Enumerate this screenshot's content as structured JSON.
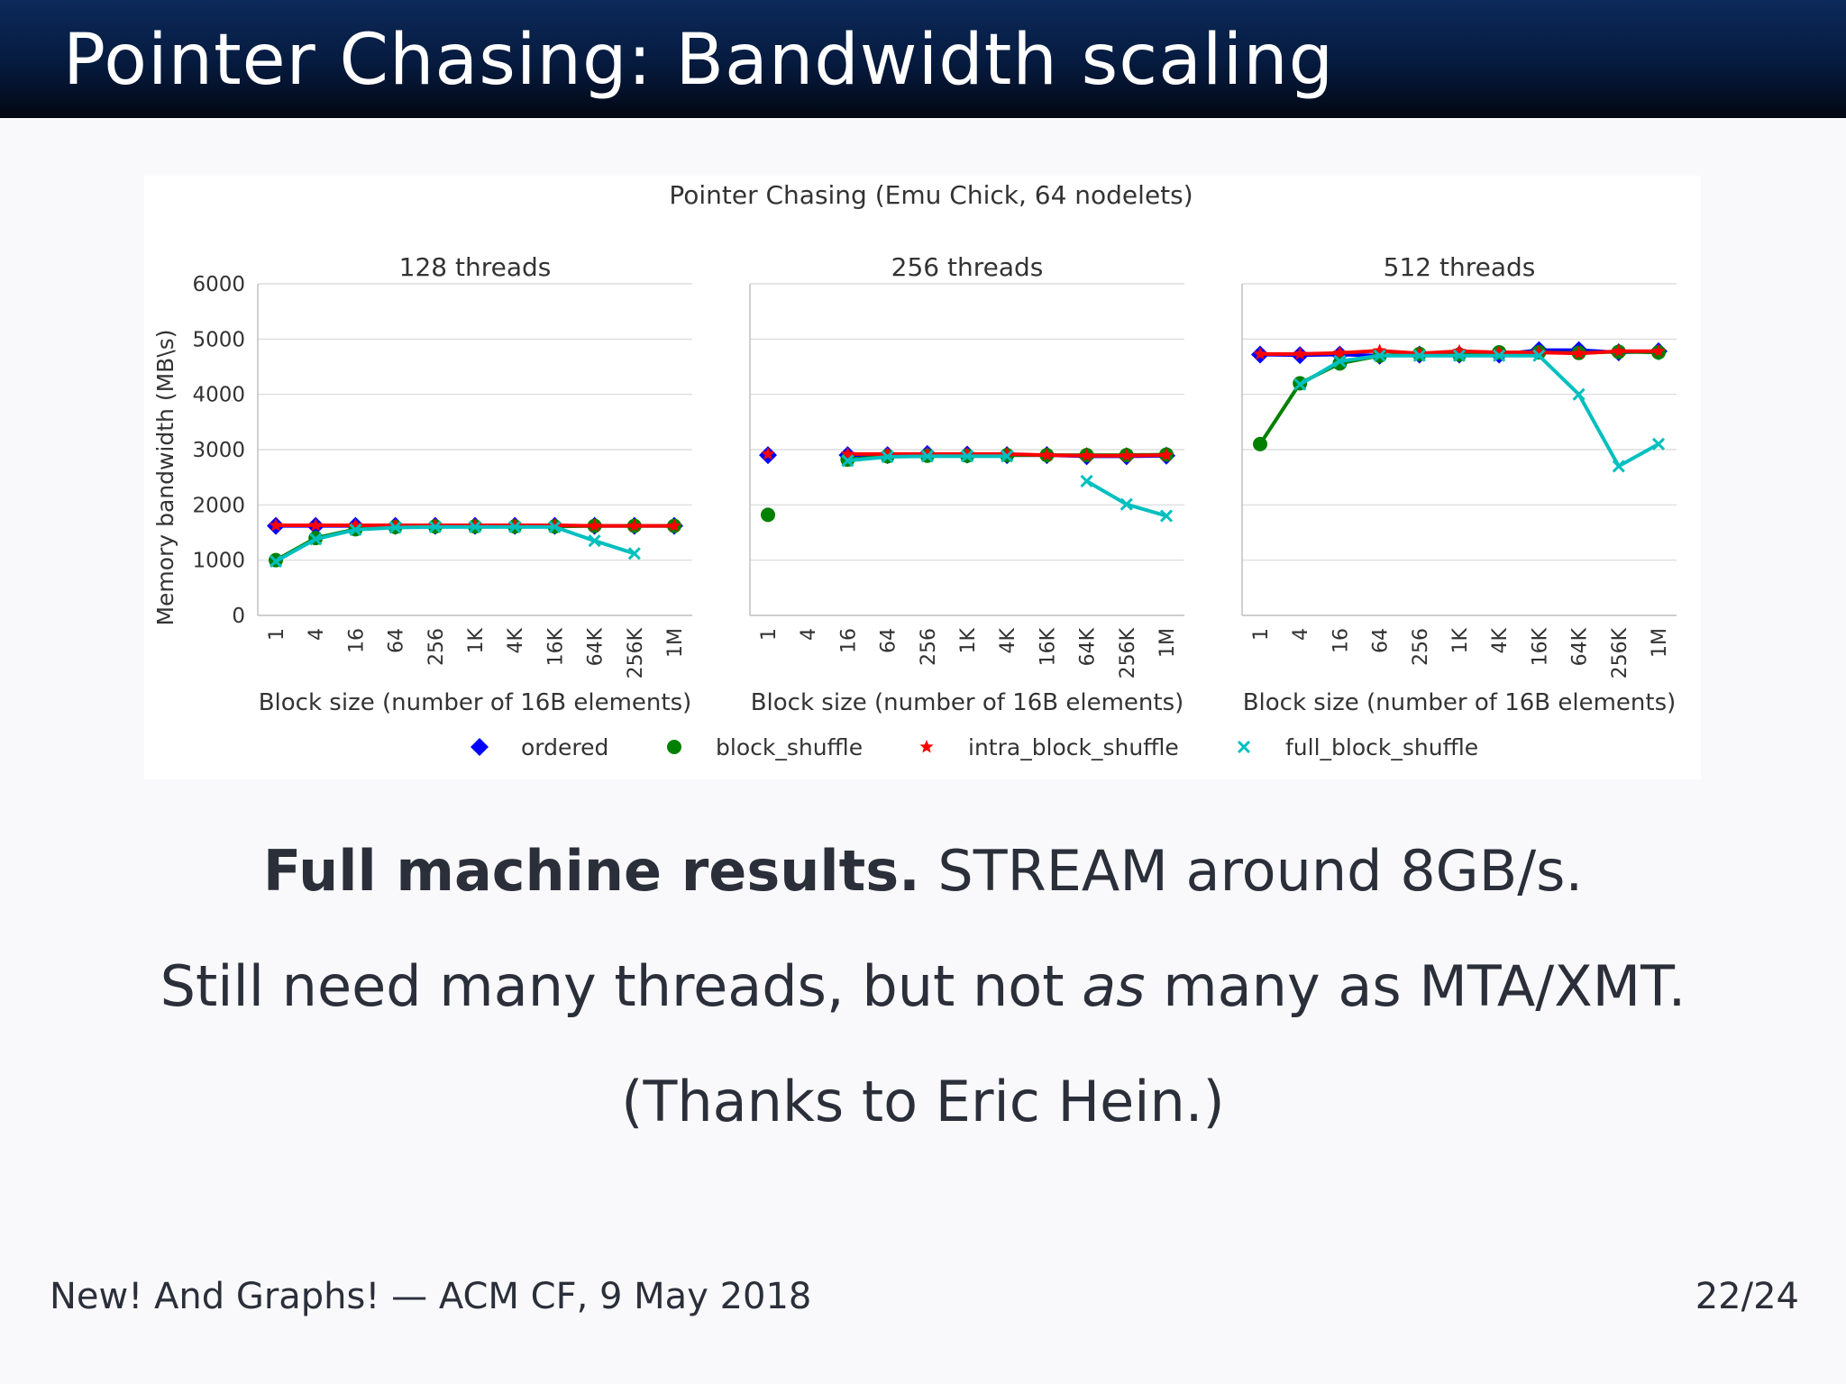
{
  "slide": {
    "title": "Pointer Chasing: Bandwidth scaling",
    "line1_bold": "Full machine results.",
    "line1_rest": " STREAM around 8GB/s.",
    "line2_a": "Still need many threads, but not ",
    "line2_em": "as",
    "line2_b": " many as MTA/XMT.",
    "line3": "(Thanks to Eric Hein.)",
    "footer_left": "New! And Graphs! — ACM CF, 9 May 2018",
    "footer_right": "22/24"
  },
  "chart_data": {
    "type": "line",
    "suptitle": "Pointer Chasing (Emu Chick, 64 nodelets)",
    "ylabel": "Memory bandwidth (MB\\s)",
    "xlabel": "Block size (number of 16B elements)",
    "ylim": [
      0,
      6000
    ],
    "yticks": [
      0,
      1000,
      2000,
      3000,
      4000,
      5000,
      6000
    ],
    "categories": [
      "1",
      "4",
      "16",
      "64",
      "256",
      "1K",
      "4K",
      "16K",
      "64K",
      "256K",
      "1M"
    ],
    "legend": [
      {
        "name": "ordered",
        "color": "#0000ff",
        "marker": "diamond"
      },
      {
        "name": "block_shuffle",
        "color": "#008000",
        "marker": "circle"
      },
      {
        "name": "intra_block_shuffle",
        "color": "#ff0000",
        "marker": "star"
      },
      {
        "name": "full_block_shuffle",
        "color": "#00bfbf",
        "marker": "x"
      }
    ],
    "panels": [
      {
        "title": "128 threads",
        "series": [
          {
            "name": "ordered",
            "values": [
              1620,
              1620,
              1620,
              1620,
              1620,
              1620,
              1620,
              1620,
              1620,
              1620,
              1620
            ]
          },
          {
            "name": "block_shuffle",
            "values": [
              1000,
              1400,
              1560,
              1600,
              1610,
              1610,
              1610,
              1610,
              1620,
              1620,
              1620
            ]
          },
          {
            "name": "intra_block_shuffle",
            "values": [
              1630,
              1630,
              1630,
              1630,
              1630,
              1630,
              1630,
              1630,
              1620,
              1620,
              1620
            ]
          },
          {
            "name": "full_block_shuffle",
            "values": [
              980,
              1380,
              1550,
              1590,
              1600,
              1600,
              1600,
              1600,
              1350,
              1120,
              null
            ]
          }
        ]
      },
      {
        "title": "256 threads",
        "series": [
          {
            "name": "ordered",
            "values": [
              2900,
              null,
              2900,
              2900,
              2920,
              2910,
              2900,
              2900,
              2880,
              2880,
              2890
            ]
          },
          {
            "name": "block_shuffle",
            "values": [
              1820,
              null,
              2820,
              2880,
              2890,
              2890,
              2900,
              2900,
              2900,
              2900,
              2910
            ]
          },
          {
            "name": "intra_block_shuffle",
            "values": [
              2920,
              null,
              2920,
              2920,
              2920,
              2920,
              2920,
              2900,
              2890,
              2890,
              2900
            ]
          },
          {
            "name": "full_block_shuffle",
            "values": [
              null,
              null,
              2800,
              2870,
              2880,
              2880,
              2880,
              null,
              2430,
              2010,
              1800
            ]
          }
        ]
      },
      {
        "title": "512 threads",
        "series": [
          {
            "name": "ordered",
            "values": [
              4720,
              4710,
              4720,
              4700,
              4720,
              4720,
              4720,
              4800,
              4800,
              4760,
              4780
            ]
          },
          {
            "name": "block_shuffle",
            "values": [
              3100,
              4200,
              4560,
              4700,
              4730,
              4720,
              4760,
              4760,
              4750,
              4770,
              4760
            ]
          },
          {
            "name": "intra_block_shuffle",
            "values": [
              4730,
              4730,
              4750,
              4790,
              4740,
              4780,
              4760,
              4760,
              4740,
              4780,
              4780
            ]
          },
          {
            "name": "full_block_shuffle",
            "values": [
              null,
              4180,
              4600,
              4700,
              4700,
              4700,
              4700,
              4700,
              4000,
              2700,
              3100
            ]
          }
        ]
      }
    ]
  }
}
